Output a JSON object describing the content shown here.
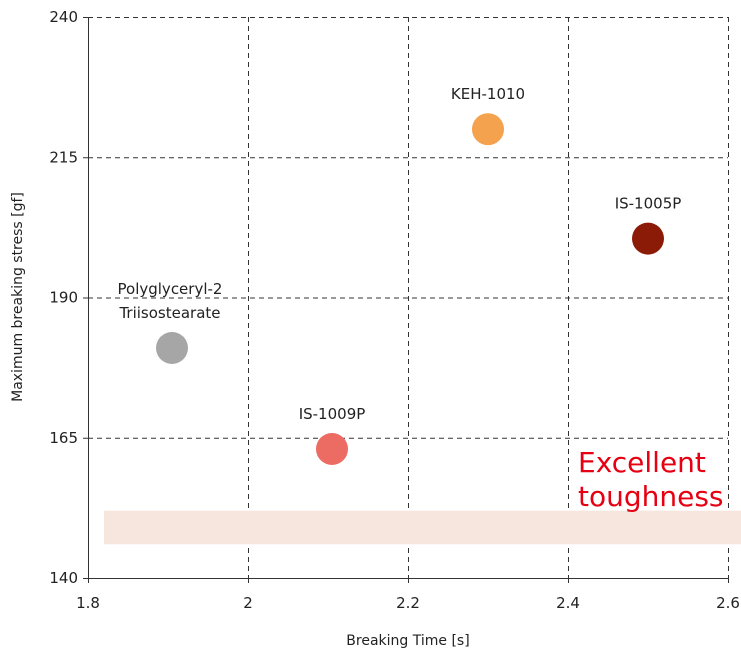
{
  "chart_data": {
    "type": "scatter",
    "xlabel": "Breaking Time [s]",
    "ylabel": "Maximum breaking stress [gf]",
    "xlim": [
      1.8,
      2.6
    ],
    "ylim": [
      140,
      240
    ],
    "xticks": [
      "1.8",
      "2",
      "2.2",
      "2.4",
      "2.6"
    ],
    "yticks": [
      "240",
      "215",
      "190",
      "165",
      "140"
    ],
    "grid": true,
    "points": [
      {
        "label": [
          "KEH-1010"
        ],
        "x": 2.3,
        "y": 220,
        "color": "#f4a24d"
      },
      {
        "label": [
          "IS-1005P"
        ],
        "x": 2.5,
        "y": 200.5,
        "color": "#8b1a06"
      },
      {
        "label": [
          "Polyglyceryl-2",
          "Triisostearate"
        ],
        "x": 1.905,
        "y": 181,
        "color": "#a6a6a6"
      },
      {
        "label": [
          "IS-1009P"
        ],
        "x": 2.105,
        "y": 163,
        "color": "#ec6b63"
      }
    ],
    "highlight": {
      "text": [
        "Excellent",
        "toughness"
      ],
      "band_y": [
        146,
        152
      ],
      "band_color": "#f6e6dd",
      "text_color": "#e60012"
    }
  }
}
